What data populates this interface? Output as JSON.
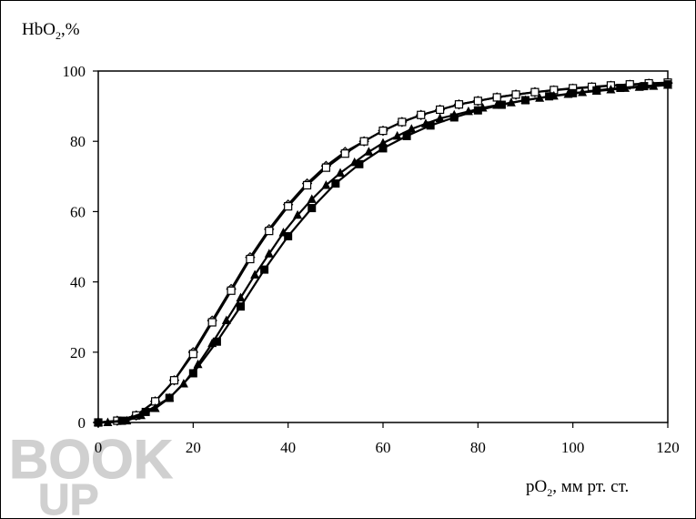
{
  "chart_data": {
    "type": "line",
    "ylabel": {
      "main": "HbO",
      "sub": "2",
      "tail": ",%"
    },
    "xlabel": {
      "main": "pO",
      "sub": "2",
      "tail": ", мм рт. ст."
    },
    "xlim": [
      0,
      120
    ],
    "ylim": [
      0,
      100
    ],
    "xticks": [
      0,
      20,
      40,
      60,
      80,
      100,
      120
    ],
    "yticks": [
      0,
      20,
      40,
      60,
      80,
      100
    ],
    "xtick_labels": [
      "0",
      "20",
      "40",
      "60",
      "80",
      "100",
      "120"
    ],
    "ytick_labels": [
      "0",
      "20",
      "40",
      "60",
      "80",
      "100"
    ],
    "grid": false,
    "series": [
      {
        "marker": "diamond-open",
        "x": [
          0,
          4,
          8,
          12,
          16,
          20,
          24,
          28,
          32,
          36,
          40,
          44,
          48,
          52,
          56,
          60,
          64,
          68,
          72,
          76,
          80,
          84,
          88,
          92,
          96,
          100,
          104,
          108,
          112,
          116,
          120
        ],
        "y": [
          0,
          0.5,
          2,
          6,
          12,
          20,
          29,
          38,
          47,
          55,
          62,
          68,
          73,
          77,
          80,
          83,
          85.5,
          87.5,
          89,
          90.5,
          91.5,
          92.5,
          93.3,
          94,
          94.5,
          95,
          95.4,
          95.8,
          96.1,
          96.4,
          96.6
        ]
      },
      {
        "marker": "square-open",
        "x": [
          0,
          4,
          8,
          12,
          16,
          20,
          24,
          28,
          32,
          36,
          40,
          44,
          48,
          52,
          56,
          60,
          64,
          68,
          72,
          76,
          80,
          84,
          88,
          92,
          96,
          100,
          104,
          108,
          112,
          116,
          120
        ],
        "y": [
          0,
          0.5,
          2,
          6,
          12,
          19.5,
          28.5,
          37.5,
          46.5,
          54.5,
          61.5,
          67.5,
          72.5,
          76.5,
          80,
          83,
          85.5,
          87.5,
          89,
          90.5,
          91.5,
          92.5,
          93.3,
          94,
          94.6,
          95.1,
          95.5,
          95.9,
          96.2,
          96.5,
          96.7
        ]
      },
      {
        "marker": "triangle-filled",
        "x": [
          0,
          2,
          6,
          9,
          12,
          15,
          18,
          21,
          24,
          27,
          30,
          33,
          36,
          39,
          42,
          45,
          48,
          51,
          54,
          57,
          60,
          63,
          66,
          69,
          72,
          75,
          78,
          81,
          84,
          87,
          90,
          93,
          96,
          99,
          102,
          105,
          108,
          111,
          114,
          117,
          120
        ],
        "y": [
          0,
          0,
          0.5,
          2,
          4,
          7,
          11,
          16.5,
          22.5,
          29,
          35.5,
          42,
          48,
          54,
          59,
          63.5,
          67.5,
          71,
          74,
          77,
          79.5,
          81.5,
          83.5,
          85,
          86.5,
          87.5,
          88.5,
          89.5,
          90.3,
          91,
          91.7,
          92.3,
          92.9,
          93.4,
          93.9,
          94.3,
          94.7,
          95.1,
          95.4,
          95.7,
          96
        ]
      },
      {
        "marker": "square-filled",
        "x": [
          0,
          5,
          10,
          15,
          20,
          25,
          30,
          35,
          40,
          45,
          50,
          55,
          60,
          65,
          70,
          75,
          80,
          85,
          90,
          95,
          100,
          105,
          110,
          115,
          120
        ],
        "y": [
          0,
          0.5,
          3,
          7,
          14,
          23,
          33,
          43.5,
          53,
          61,
          68,
          73.5,
          78,
          81.5,
          84.5,
          86.8,
          88.8,
          90.4,
          91.7,
          92.8,
          93.7,
          94.5,
          95.2,
          95.7,
          96.2
        ]
      }
    ]
  },
  "watermark": {
    "line1": "BOOK",
    "line2": "UP"
  }
}
